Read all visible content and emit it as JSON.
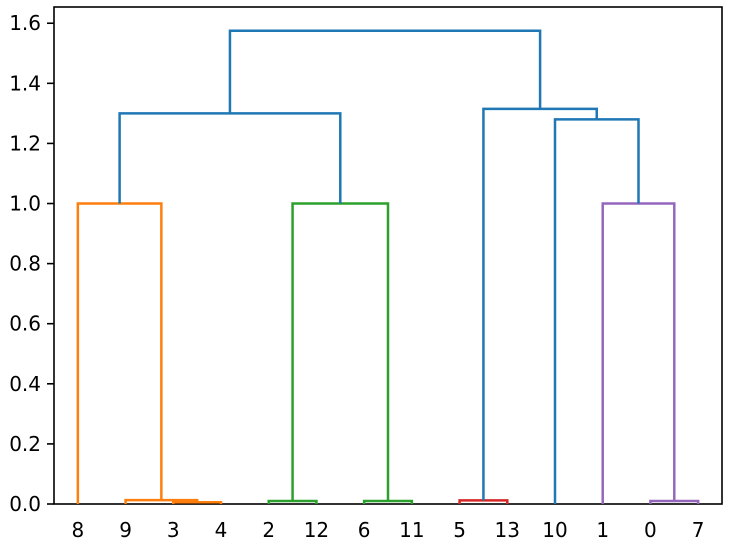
{
  "figure": {
    "background": "#ffffff",
    "axis_color": "#000000"
  },
  "chart_data": {
    "type": "dendrogram",
    "orientation": "top",
    "grid": false,
    "leaf_labels": [
      "8",
      "9",
      "3",
      "4",
      "2",
      "12",
      "6",
      "11",
      "5",
      "13",
      "10",
      "1",
      "0",
      "7"
    ],
    "first_leaf_x": 5,
    "leaf_spacing": 10,
    "xlim": [
      0,
      140
    ],
    "ylim": [
      0,
      1.654
    ],
    "y_ticks": [
      0.0,
      0.2,
      0.4,
      0.6,
      0.8,
      1.0,
      1.2,
      1.4,
      1.6
    ],
    "y_tick_labels": [
      "0.0",
      "0.2",
      "0.4",
      "0.6",
      "0.8",
      "1.0",
      "1.2",
      "1.4",
      "1.6"
    ],
    "palette": {
      "blue": "#1f77b4",
      "orange": "#ff7f0e",
      "green": "#2ca02c",
      "red": "#d62728",
      "purple": "#9467bd"
    },
    "clusters": {
      "orange": [
        "8",
        "9",
        "3",
        "4"
      ],
      "green": [
        "2",
        "12",
        "6",
        "11"
      ],
      "red": [
        "5",
        "13"
      ],
      "blue_singleton": [
        "10"
      ],
      "purple": [
        "1",
        "0",
        "7"
      ]
    },
    "links": [
      {
        "color": "orange",
        "xl": 25,
        "xr": 35,
        "bl": 0,
        "br": 0,
        "h": 0.006
      },
      {
        "color": "orange",
        "xl": 15,
        "xr": 30,
        "bl": 0,
        "br": 0.006,
        "h": 0.013
      },
      {
        "color": "orange",
        "xl": 5,
        "xr": 22.5,
        "bl": 0,
        "br": 0.013,
        "h": 1.0
      },
      {
        "color": "green",
        "xl": 45,
        "xr": 55,
        "bl": 0,
        "br": 0,
        "h": 0.01
      },
      {
        "color": "green",
        "xl": 65,
        "xr": 75,
        "bl": 0,
        "br": 0,
        "h": 0.01
      },
      {
        "color": "green",
        "xl": 50,
        "xr": 70,
        "bl": 0.01,
        "br": 0.01,
        "h": 1.0
      },
      {
        "color": "blue",
        "xl": 13.75,
        "xr": 60,
        "bl": 1.0,
        "br": 1.0,
        "h": 1.3
      },
      {
        "color": "red",
        "xl": 85,
        "xr": 95,
        "bl": 0,
        "br": 0,
        "h": 0.012
      },
      {
        "color": "purple",
        "xl": 125,
        "xr": 135,
        "bl": 0,
        "br": 0,
        "h": 0.01
      },
      {
        "color": "purple",
        "xl": 115,
        "xr": 130,
        "bl": 0,
        "br": 0.01,
        "h": 1.0
      },
      {
        "color": "blue",
        "xl": 105,
        "xr": 122.5,
        "bl": 0,
        "br": 1.0,
        "h": 1.28
      },
      {
        "color": "blue",
        "xl": 90,
        "xr": 113.75,
        "bl": 0.012,
        "br": 1.28,
        "h": 1.315
      },
      {
        "color": "blue",
        "xl": 36.875,
        "xr": 101.875,
        "bl": 1.3,
        "br": 1.315,
        "h": 1.575
      }
    ]
  }
}
